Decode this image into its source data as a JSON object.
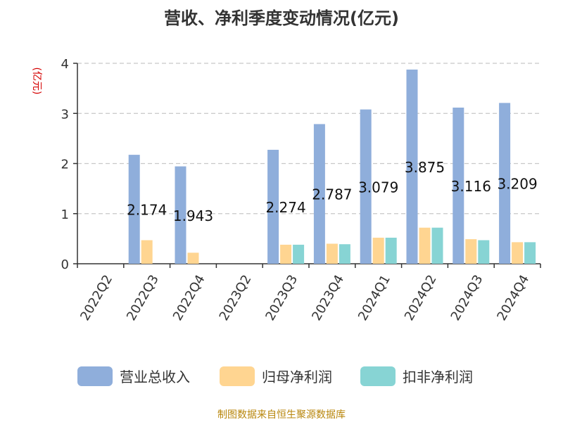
{
  "chart_data": {
    "type": "bar",
    "title": "营收、净利季度变动情况(亿元)",
    "unit_label": "(亿元)",
    "categories": [
      "2022Q2",
      "2022Q3",
      "2022Q4",
      "2023Q2",
      "2023Q3",
      "2023Q4",
      "2024Q1",
      "2024Q2",
      "2024Q3",
      "2024Q4"
    ],
    "series": [
      {
        "name": "营业总收入",
        "color": "#8faedb",
        "values": [
          null,
          2.174,
          1.943,
          null,
          2.274,
          2.787,
          3.079,
          3.875,
          3.116,
          3.209
        ]
      },
      {
        "name": "归母净利润",
        "color": "#ffd591",
        "values": [
          null,
          0.47,
          0.22,
          null,
          0.38,
          0.4,
          0.52,
          0.72,
          0.49,
          0.43
        ]
      },
      {
        "name": "扣非净利润",
        "color": "#87d4d4",
        "values": [
          null,
          null,
          null,
          null,
          0.38,
          0.39,
          0.52,
          0.72,
          0.47,
          0.43
        ]
      }
    ],
    "data_labels": [
      "",
      "2.174",
      "1.943",
      "",
      "2.274",
      "2.787",
      "3.079",
      "3.875",
      "3.116",
      "3.209"
    ],
    "ylim": [
      0,
      4
    ],
    "yticks": [
      "0",
      "1",
      "2",
      "3",
      "4"
    ],
    "grid": true,
    "legend_position": "bottom"
  },
  "source_text": "制图数据来自恒生聚源数据库"
}
